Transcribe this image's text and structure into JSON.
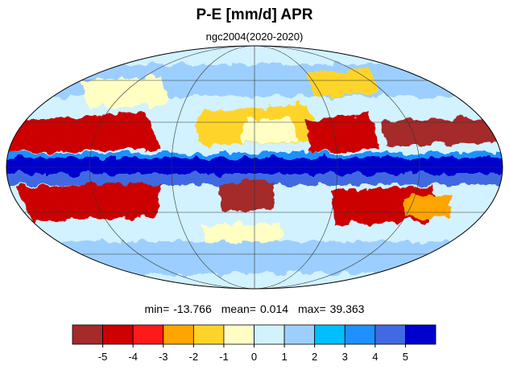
{
  "header": {
    "title": "P-E [mm/d] APR",
    "subtitle": "ngc2004(2020-2020)"
  },
  "stats": [
    {
      "label": "min=",
      "value": -13.766
    },
    {
      "label": "mean=",
      "value": 0.014
    },
    {
      "label": "max=",
      "value": 39.363
    }
  ],
  "colorbar": {
    "colors": [
      "#a52a2a",
      "#cc0000",
      "#ff1a1a",
      "#ffa500",
      "#ffd42a",
      "#ffffc4",
      "#d2f2ff",
      "#9ccfff",
      "#00bfff",
      "#1e90ff",
      "#4169e1",
      "#0000cd"
    ],
    "ticks": [
      -5,
      -4,
      -3,
      -2,
      -1,
      0,
      1,
      2,
      3,
      4,
      5
    ]
  }
}
